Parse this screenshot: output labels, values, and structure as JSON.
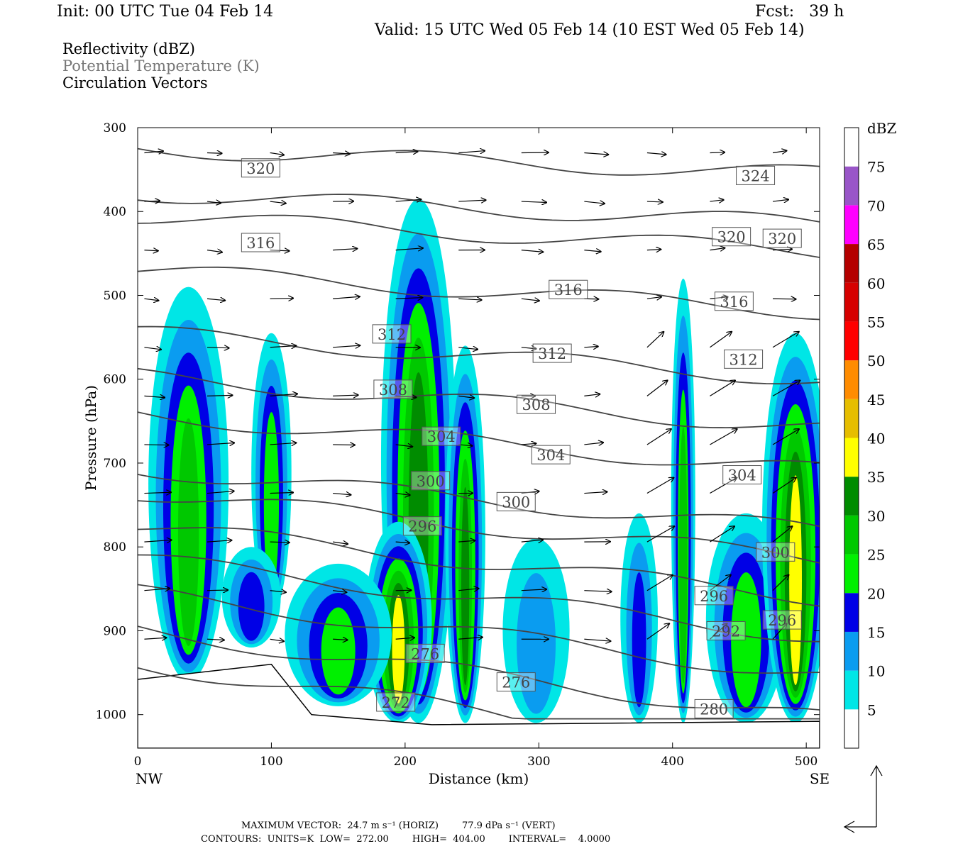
{
  "header": {
    "init": "Init: 00 UTC Tue 04 Feb 14",
    "fcst": "Fcst:   39 h",
    "valid": "Valid: 15 UTC Wed 05 Feb 14 (10 EST Wed 05 Feb 14)"
  },
  "legend": {
    "line1": "Reflectivity (dBZ)",
    "line2": "Potential Temperature (K)",
    "line3": "Circulation Vectors"
  },
  "footer": {
    "max_vector": "MAXIMUM VECTOR:  24.7 m s⁻¹ (HORIZ)        77.9 dPa s⁻¹ (VERT)",
    "contours": "CONTOURS:  UNITS=K  LOW=  272.00        HIGH=  404.00        INTERVAL=    4.0000"
  },
  "chart_data": {
    "type": "cross-section",
    "xlabel": "Distance (km)",
    "ylabel": "Pressure (hPa)",
    "xlim": [
      0,
      510
    ],
    "ylim": [
      1040,
      300
    ],
    "x_ticks": [
      0,
      100,
      200,
      300,
      400,
      500
    ],
    "y_ticks": [
      300,
      400,
      500,
      600,
      700,
      800,
      900,
      1000
    ],
    "x_end_labels": {
      "left": "NW",
      "right": "SE"
    },
    "colorbar": {
      "title": "dBZ",
      "ticks": [
        5,
        10,
        15,
        20,
        25,
        30,
        35,
        40,
        45,
        50,
        55,
        60,
        65,
        70,
        75
      ],
      "colors": [
        "#ffffff",
        "#00e6e6",
        "#0a9cf0",
        "#0000e6",
        "#00f000",
        "#00c800",
        "#008c00",
        "#ffff00",
        "#e6be00",
        "#ff8c00",
        "#ff0000",
        "#d60000",
        "#b40000",
        "#ff00ff",
        "#9955c8",
        "#ffffff"
      ]
    },
    "theta_labels": [
      {
        "v": "320",
        "x": 92,
        "p": 348
      },
      {
        "v": "324",
        "x": 462,
        "p": 357
      },
      {
        "v": "316",
        "x": 92,
        "p": 437
      },
      {
        "v": "320",
        "x": 444,
        "p": 430
      },
      {
        "v": "320",
        "x": 482,
        "p": 432
      },
      {
        "v": "316",
        "x": 322,
        "p": 493
      },
      {
        "v": "316",
        "x": 446,
        "p": 507
      },
      {
        "v": "312",
        "x": 190,
        "p": 546
      },
      {
        "v": "312",
        "x": 310,
        "p": 569
      },
      {
        "v": "312",
        "x": 453,
        "p": 576
      },
      {
        "v": "308",
        "x": 191,
        "p": 612
      },
      {
        "v": "308",
        "x": 298,
        "p": 630
      },
      {
        "v": "304",
        "x": 227,
        "p": 668
      },
      {
        "v": "304",
        "x": 309,
        "p": 690
      },
      {
        "v": "304",
        "x": 452,
        "p": 714
      },
      {
        "v": "300",
        "x": 219,
        "p": 721
      },
      {
        "v": "300",
        "x": 283,
        "p": 746
      },
      {
        "v": "300",
        "x": 477,
        "p": 806
      },
      {
        "v": "296",
        "x": 213,
        "p": 775
      },
      {
        "v": "296",
        "x": 431,
        "p": 858
      },
      {
        "v": "296",
        "x": 482,
        "p": 887
      },
      {
        "v": "292",
        "x": 440,
        "p": 900
      },
      {
        "v": "276",
        "x": 215,
        "p": 927
      },
      {
        "v": "276",
        "x": 283,
        "p": 961
      },
      {
        "v": "272",
        "x": 193,
        "p": 985
      },
      {
        "v": "280",
        "x": 431,
        "p": 993
      }
    ]
  }
}
